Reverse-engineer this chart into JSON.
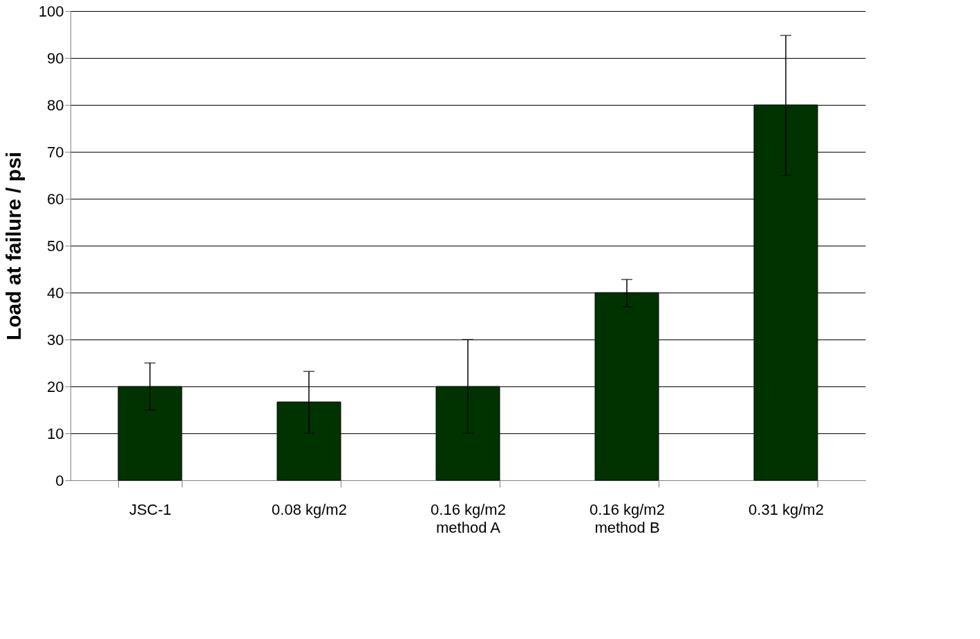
{
  "chart_data": {
    "type": "bar",
    "ylabel": "Load at failure / psi",
    "categories": [
      "JSC-1",
      "0.08 kg/m2",
      "0.16 kg/m2\nmethod A",
      "0.16 kg/m2\nmethod B",
      "0.31 kg/m2"
    ],
    "values": [
      20,
      16.7,
      20,
      40,
      80
    ],
    "errors": [
      [
        15,
        25
      ],
      [
        10,
        23.2
      ],
      [
        10,
        30
      ],
      [
        37,
        42.8
      ],
      [
        65,
        94.8
      ]
    ],
    "color": "#003300",
    "ylim": [
      0,
      100
    ],
    "yticks": [
      0,
      10,
      20,
      30,
      40,
      50,
      60,
      70,
      80,
      90,
      100
    ],
    "grid": "y"
  }
}
